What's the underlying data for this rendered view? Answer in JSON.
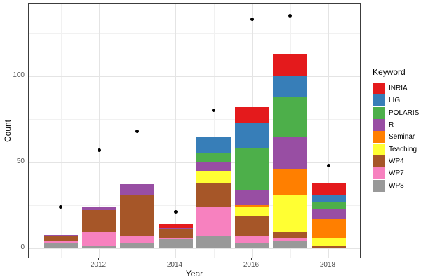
{
  "chart_data": {
    "type": "bar",
    "stacked": true,
    "title": "",
    "xlabel": "Year",
    "ylabel": "Count",
    "legend_title": "Keyword",
    "legend_position": "right",
    "grid": true,
    "categories": [
      2011,
      2012,
      2013,
      2014,
      2015,
      2016,
      2017,
      2018
    ],
    "series": [
      {
        "name": "INRIA",
        "color": "#E41A1C",
        "values": [
          0,
          0,
          0,
          2,
          0,
          9,
          13,
          7
        ]
      },
      {
        "name": "LIG",
        "color": "#377EB8",
        "values": [
          0,
          0,
          0,
          0,
          10,
          15,
          12,
          4
        ]
      },
      {
        "name": "POLARIS",
        "color": "#4DAF4A",
        "values": [
          0,
          0,
          0,
          0,
          5,
          24,
          23,
          4
        ]
      },
      {
        "name": "R",
        "color": "#984EA3",
        "values": [
          1,
          2,
          6,
          1,
          5,
          9,
          19,
          6
        ]
      },
      {
        "name": "Seminar",
        "color": "#FF7F00",
        "values": [
          0,
          0,
          0,
          0,
          0,
          1,
          15,
          11
        ]
      },
      {
        "name": "Teaching",
        "color": "#FFFF33",
        "values": [
          0,
          0,
          0,
          0,
          7,
          5,
          22,
          5
        ]
      },
      {
        "name": "WP4",
        "color": "#A65628",
        "values": [
          3,
          13,
          24,
          5,
          14,
          12,
          3,
          1
        ]
      },
      {
        "name": "WP7",
        "color": "#F781BF",
        "values": [
          1,
          8,
          4,
          1,
          17,
          4,
          2,
          0
        ]
      },
      {
        "name": "WP8",
        "color": "#999999",
        "values": [
          3,
          1,
          3,
          5,
          7,
          3,
          4,
          0
        ]
      }
    ],
    "stack_order_bottom_to_top": [
      "WP8",
      "WP7",
      "WP4",
      "Teaching",
      "Seminar",
      "R",
      "POLARIS",
      "LIG",
      "INRIA"
    ],
    "bar_totals": [
      8,
      24,
      37,
      14,
      65,
      82,
      113,
      38
    ],
    "points_overlay": {
      "marker": "filled-circle",
      "color": "#000000",
      "values": [
        24,
        57,
        68,
        21,
        80,
        133,
        135,
        48
      ]
    },
    "x_axis": {
      "label": "Year",
      "tick_years": [
        2012,
        2014,
        2016,
        2018
      ],
      "tick_labels": [
        "2012",
        "2014",
        "2016",
        "2018"
      ],
      "minor_years": [
        2011,
        2013,
        2015,
        2017
      ]
    },
    "y_axis": {
      "label": "Count",
      "tick_values": [
        0,
        50,
        100
      ],
      "tick_labels": [
        "0",
        "50",
        "100"
      ],
      "minor_values": [
        25,
        75,
        125
      ],
      "ylim": [
        0,
        141
      ]
    },
    "panel_style": {
      "background": "#FFFFFF",
      "border_color": "#3C3C3C",
      "grid_major_color": "#E4E4E4",
      "grid_minor_color": "#F1F1F1",
      "tick_color": "#333333",
      "tick_text_color": "#4D4D4D"
    }
  }
}
